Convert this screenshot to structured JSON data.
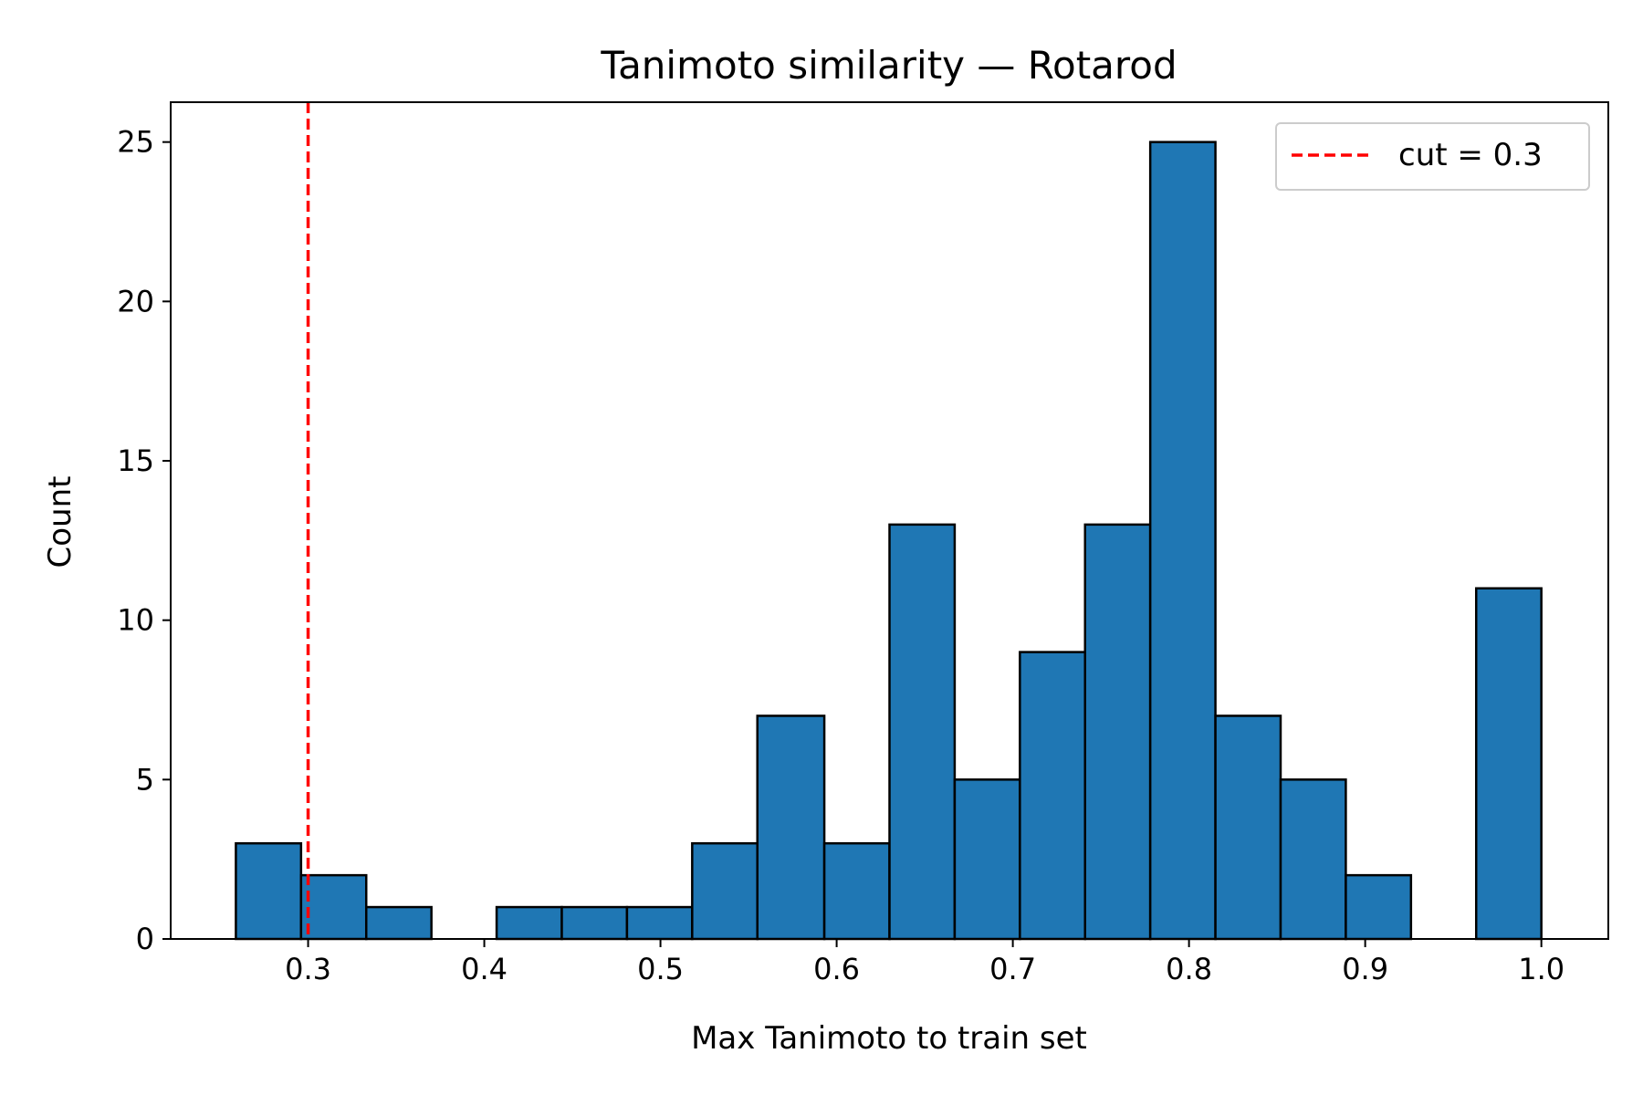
{
  "chart_data": {
    "type": "bar",
    "title": "Tanimoto similarity — Rotarod",
    "xlabel": "Max Tanimoto to train set",
    "ylabel": "Count",
    "xlim": [
      0.222,
      1.038
    ],
    "ylim": [
      0,
      26.25
    ],
    "xticks": [
      "0.3",
      "0.4",
      "0.5",
      "0.6",
      "0.7",
      "0.8",
      "0.9",
      "1.0"
    ],
    "xtick_values": [
      0.3,
      0.4,
      0.5,
      0.6,
      0.7,
      0.8,
      0.9,
      1.0
    ],
    "yticks": [
      "0",
      "5",
      "10",
      "15",
      "20",
      "25"
    ],
    "ytick_values": [
      0,
      5,
      10,
      15,
      20,
      25
    ],
    "bin_start": 0.259,
    "bin_end": 1.0,
    "bins": [
      {
        "x0": 0.259,
        "x1": 0.296,
        "count": 3
      },
      {
        "x0": 0.296,
        "x1": 0.333,
        "count": 2
      },
      {
        "x0": 0.333,
        "x1": 0.37,
        "count": 1
      },
      {
        "x0": 0.37,
        "x1": 0.407,
        "count": 0
      },
      {
        "x0": 0.407,
        "x1": 0.444,
        "count": 1
      },
      {
        "x0": 0.444,
        "x1": 0.481,
        "count": 1
      },
      {
        "x0": 0.481,
        "x1": 0.518,
        "count": 1
      },
      {
        "x0": 0.518,
        "x1": 0.555,
        "count": 3
      },
      {
        "x0": 0.555,
        "x1": 0.593,
        "count": 7
      },
      {
        "x0": 0.593,
        "x1": 0.63,
        "count": 3
      },
      {
        "x0": 0.63,
        "x1": 0.667,
        "count": 13
      },
      {
        "x0": 0.667,
        "x1": 0.704,
        "count": 5
      },
      {
        "x0": 0.704,
        "x1": 0.741,
        "count": 9
      },
      {
        "x0": 0.741,
        "x1": 0.778,
        "count": 13
      },
      {
        "x0": 0.778,
        "x1": 0.815,
        "count": 25
      },
      {
        "x0": 0.815,
        "x1": 0.852,
        "count": 7
      },
      {
        "x0": 0.852,
        "x1": 0.889,
        "count": 5
      },
      {
        "x0": 0.889,
        "x1": 0.926,
        "count": 2
      },
      {
        "x0": 0.926,
        "x1": 0.963,
        "count": 0
      },
      {
        "x0": 0.963,
        "x1": 1.0,
        "count": 11
      }
    ],
    "cut_line": {
      "x": 0.3,
      "label": "cut = 0.3",
      "color": "#ff0000",
      "style": "dashed"
    },
    "bar_color": "#1f77b4",
    "edge_color": "#000000",
    "grid": false,
    "legend_position": "top-right"
  }
}
